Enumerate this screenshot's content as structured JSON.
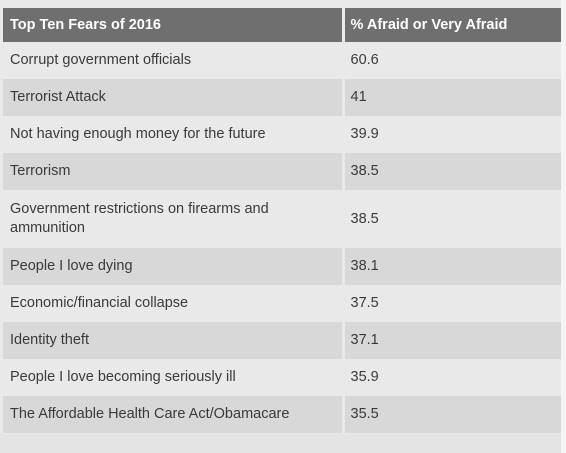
{
  "chart_data": {
    "type": "table",
    "columns": [
      "Top Ten Fears of 2016",
      "% Afraid or Very Afraid"
    ],
    "rows": [
      {
        "fear": "Corrupt government officials",
        "value": "60.6"
      },
      {
        "fear": "Terrorist Attack",
        "value": "41"
      },
      {
        "fear": "Not having enough money for the future",
        "value": "39.9"
      },
      {
        "fear": "Terrorism",
        "value": "38.5"
      },
      {
        "fear": "Government restrictions on firearms and ammunition",
        "value": "38.5"
      },
      {
        "fear": "People I love dying",
        "value": "38.1"
      },
      {
        "fear": "Economic/financial collapse",
        "value": "37.5"
      },
      {
        "fear": "Identity theft",
        "value": "37.1"
      },
      {
        "fear": "People I love becoming seriously ill",
        "value": "35.9"
      },
      {
        "fear": "The Affordable Health Care Act/Obamacare",
        "value": "35.5"
      }
    ]
  },
  "colors": {
    "header_bg": "#6f6f6f",
    "row_light": "#e9e9e9",
    "row_dark": "#d8d8d8"
  }
}
